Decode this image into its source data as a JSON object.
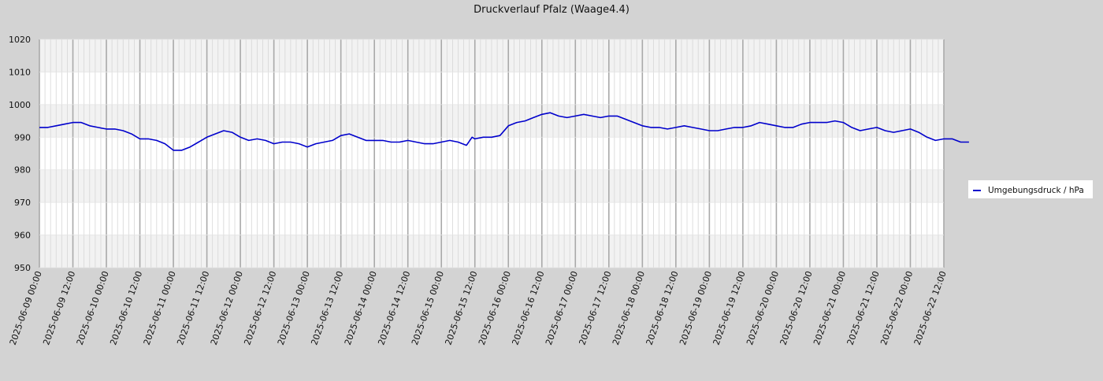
{
  "chart_data": {
    "type": "line",
    "title": "Druckverlauf Pfalz (Waage4.4)",
    "xlabel": "",
    "ylabel": "",
    "ylim": [
      950,
      1020
    ],
    "yticks": [
      950,
      960,
      970,
      980,
      990,
      1000,
      1010,
      1020
    ],
    "xlim": [
      "2025-06-09 00:00",
      "2025-06-22 12:00"
    ],
    "xticks": [
      "2025-06-09 00:00",
      "2025-06-09 12:00",
      "2025-06-10 00:00",
      "2025-06-10 12:00",
      "2025-06-11 00:00",
      "2025-06-11 12:00",
      "2025-06-12 00:00",
      "2025-06-12 12:00",
      "2025-06-13 00:00",
      "2025-06-13 12:00",
      "2025-06-14 00:00",
      "2025-06-14 12:00",
      "2025-06-15 00:00",
      "2025-06-15 12:00",
      "2025-06-16 00:00",
      "2025-06-16 12:00",
      "2025-06-17 00:00",
      "2025-06-17 12:00",
      "2025-06-18 00:00",
      "2025-06-18 12:00",
      "2025-06-19 00:00",
      "2025-06-19 12:00",
      "2025-06-20 00:00",
      "2025-06-20 12:00",
      "2025-06-21 00:00",
      "2025-06-21 12:00",
      "2025-06-22 00:00",
      "2025-06-22 12:00"
    ],
    "grid": true,
    "legend_position": "right",
    "series": [
      {
        "name": "Umgebungsdruck / hPa",
        "color": "#0000cc",
        "points": [
          [
            "2025-06-09 00:00",
            993
          ],
          [
            "2025-06-09 03:00",
            993
          ],
          [
            "2025-06-09 06:00",
            993.5
          ],
          [
            "2025-06-09 09:00",
            994
          ],
          [
            "2025-06-09 12:00",
            994.5
          ],
          [
            "2025-06-09 15:00",
            994.5
          ],
          [
            "2025-06-09 18:00",
            993.5
          ],
          [
            "2025-06-09 21:00",
            993
          ],
          [
            "2025-06-10 00:00",
            992.5
          ],
          [
            "2025-06-10 03:00",
            992.5
          ],
          [
            "2025-06-10 06:00",
            992
          ],
          [
            "2025-06-10 09:00",
            991
          ],
          [
            "2025-06-10 12:00",
            989.5
          ],
          [
            "2025-06-10 15:00",
            989.5
          ],
          [
            "2025-06-10 18:00",
            989
          ],
          [
            "2025-06-10 21:00",
            988
          ],
          [
            "2025-06-11 00:00",
            986
          ],
          [
            "2025-06-11 03:00",
            986
          ],
          [
            "2025-06-11 06:00",
            987
          ],
          [
            "2025-06-11 09:00",
            988.5
          ],
          [
            "2025-06-11 12:00",
            990
          ],
          [
            "2025-06-11 15:00",
            991
          ],
          [
            "2025-06-11 18:00",
            992
          ],
          [
            "2025-06-11 21:00",
            991.5
          ],
          [
            "2025-06-12 00:00",
            990
          ],
          [
            "2025-06-12 03:00",
            989
          ],
          [
            "2025-06-12 06:00",
            989.5
          ],
          [
            "2025-06-12 09:00",
            989
          ],
          [
            "2025-06-12 12:00",
            988
          ],
          [
            "2025-06-12 15:00",
            988.5
          ],
          [
            "2025-06-12 18:00",
            988.5
          ],
          [
            "2025-06-12 21:00",
            988
          ],
          [
            "2025-06-13 00:00",
            987
          ],
          [
            "2025-06-13 03:00",
            988
          ],
          [
            "2025-06-13 06:00",
            988.5
          ],
          [
            "2025-06-13 09:00",
            989
          ],
          [
            "2025-06-13 12:00",
            990.5
          ],
          [
            "2025-06-13 15:00",
            991
          ],
          [
            "2025-06-13 18:00",
            990
          ],
          [
            "2025-06-13 21:00",
            989
          ],
          [
            "2025-06-14 00:00",
            989
          ],
          [
            "2025-06-14 03:00",
            989
          ],
          [
            "2025-06-14 06:00",
            988.5
          ],
          [
            "2025-06-14 09:00",
            988.5
          ],
          [
            "2025-06-14 12:00",
            989
          ],
          [
            "2025-06-14 15:00",
            988.5
          ],
          [
            "2025-06-14 18:00",
            988
          ],
          [
            "2025-06-14 21:00",
            988
          ],
          [
            "2025-06-15 00:00",
            988.5
          ],
          [
            "2025-06-15 03:00",
            989
          ],
          [
            "2025-06-15 06:00",
            988.5
          ],
          [
            "2025-06-15 09:00",
            987.5
          ],
          [
            "2025-06-15 11:00",
            990
          ],
          [
            "2025-06-15 12:00",
            989.5
          ],
          [
            "2025-06-15 15:00",
            990
          ],
          [
            "2025-06-15 18:00",
            990
          ],
          [
            "2025-06-15 21:00",
            990.5
          ],
          [
            "2025-06-16 00:00",
            993.5
          ],
          [
            "2025-06-16 03:00",
            994.5
          ],
          [
            "2025-06-16 06:00",
            995
          ],
          [
            "2025-06-16 09:00",
            996
          ],
          [
            "2025-06-16 12:00",
            997
          ],
          [
            "2025-06-16 15:00",
            997.5
          ],
          [
            "2025-06-16 18:00",
            996.5
          ],
          [
            "2025-06-16 21:00",
            996
          ],
          [
            "2025-06-17 00:00",
            996.5
          ],
          [
            "2025-06-17 03:00",
            997
          ],
          [
            "2025-06-17 06:00",
            996.5
          ],
          [
            "2025-06-17 09:00",
            996
          ],
          [
            "2025-06-17 12:00",
            996.5
          ],
          [
            "2025-06-17 15:00",
            996.5
          ],
          [
            "2025-06-17 18:00",
            995.5
          ],
          [
            "2025-06-17 21:00",
            994.5
          ],
          [
            "2025-06-18 00:00",
            993.5
          ],
          [
            "2025-06-18 03:00",
            993
          ],
          [
            "2025-06-18 06:00",
            993
          ],
          [
            "2025-06-18 09:00",
            992.5
          ],
          [
            "2025-06-18 12:00",
            993
          ],
          [
            "2025-06-18 15:00",
            993.5
          ],
          [
            "2025-06-18 18:00",
            993
          ],
          [
            "2025-06-18 21:00",
            992.5
          ],
          [
            "2025-06-19 00:00",
            992
          ],
          [
            "2025-06-19 03:00",
            992
          ],
          [
            "2025-06-19 06:00",
            992.5
          ],
          [
            "2025-06-19 09:00",
            993
          ],
          [
            "2025-06-19 12:00",
            993
          ],
          [
            "2025-06-19 15:00",
            993.5
          ],
          [
            "2025-06-19 18:00",
            994.5
          ],
          [
            "2025-06-19 21:00",
            994
          ],
          [
            "2025-06-20 00:00",
            993.5
          ],
          [
            "2025-06-20 03:00",
            993
          ],
          [
            "2025-06-20 06:00",
            993
          ],
          [
            "2025-06-20 09:00",
            994
          ],
          [
            "2025-06-20 12:00",
            994.5
          ],
          [
            "2025-06-20 15:00",
            994.5
          ],
          [
            "2025-06-20 18:00",
            994.5
          ],
          [
            "2025-06-20 21:00",
            995
          ],
          [
            "2025-06-21 00:00",
            994.5
          ],
          [
            "2025-06-21 03:00",
            993
          ],
          [
            "2025-06-21 06:00",
            992
          ],
          [
            "2025-06-21 09:00",
            992.5
          ],
          [
            "2025-06-21 12:00",
            993
          ],
          [
            "2025-06-21 15:00",
            992
          ],
          [
            "2025-06-21 18:00",
            991.5
          ],
          [
            "2025-06-21 21:00",
            992
          ],
          [
            "2025-06-22 00:00",
            992.5
          ],
          [
            "2025-06-22 03:00",
            991.5
          ],
          [
            "2025-06-22 06:00",
            990
          ],
          [
            "2025-06-22 09:00",
            989
          ],
          [
            "2025-06-22 12:00",
            989.5
          ],
          [
            "2025-06-22 15:00",
            989.5
          ],
          [
            "2025-06-22 18:00",
            988.5
          ],
          [
            "2025-06-22 21:00",
            988.5
          ]
        ]
      }
    ]
  }
}
